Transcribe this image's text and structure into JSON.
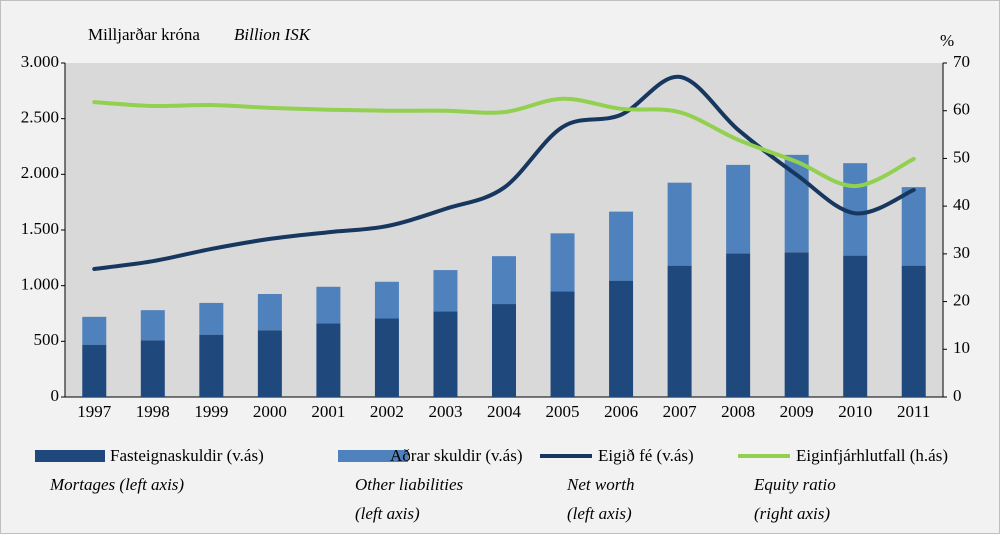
{
  "chart_data": {
    "type": "bar-line",
    "title": "Milljarðar króna",
    "title_en": "Billion ISK",
    "y2_label": "%",
    "categories": [
      "1997",
      "1998",
      "1999",
      "2000",
      "2001",
      "2002",
      "2003",
      "2004",
      "2005",
      "2006",
      "2007",
      "2008",
      "2009",
      "2010",
      "2011"
    ],
    "series": [
      {
        "name": "Fasteignaskuldir (v.ás)",
        "note": [
          "Mortages (left axis)"
        ],
        "kind": "bar",
        "color": "#1f497d",
        "values": [
          470,
          510,
          560,
          600,
          660,
          705,
          770,
          835,
          950,
          1045,
          1180,
          1290,
          1300,
          1270,
          1180
        ]
      },
      {
        "name": "Aðrar skuldir (v.ás)",
        "note": [
          "Other liabilities",
          "(left axis)"
        ],
        "kind": "bar",
        "color": "#4f81bd",
        "values": [
          250,
          270,
          285,
          325,
          330,
          330,
          370,
          430,
          520,
          620,
          745,
          795,
          875,
          830,
          705
        ]
      },
      {
        "name": "Eigið fé (v.ás)",
        "note": [
          "Net worth",
          "(left axis)"
        ],
        "kind": "line",
        "color": "#17375e",
        "values": [
          1150,
          1220,
          1330,
          1420,
          1480,
          1535,
          1690,
          1880,
          2425,
          2535,
          2875,
          2400,
          1995,
          1650,
          1860
        ]
      },
      {
        "name": "Eiginfjárhlutfall (h.ás)",
        "note": [
          "Equity ratio",
          "(right axis)"
        ],
        "kind": "line",
        "axis": "y2",
        "color": "#92d050",
        "values": [
          61.8,
          61,
          61.2,
          60.6,
          60.2,
          60,
          60,
          59.7,
          62.5,
          60.4,
          59.7,
          53.9,
          49.3,
          44.2,
          49.9
        ]
      }
    ],
    "ylim": [
      0,
      3000
    ],
    "yticks": [
      0,
      500,
      {
        "value": 1000,
        "label": "1.000"
      },
      {
        "value": 1500,
        "label": "1.500"
      },
      {
        "value": 2000,
        "label": "2.000"
      },
      {
        "value": 2500,
        "label": "2.500"
      },
      {
        "value": 3000,
        "label": "3.000"
      }
    ],
    "y2lim": [
      0,
      70
    ],
    "y2ticks": [
      0,
      10,
      20,
      30,
      40,
      50,
      60,
      70
    ],
    "plot_background": "#d9d9d9"
  }
}
